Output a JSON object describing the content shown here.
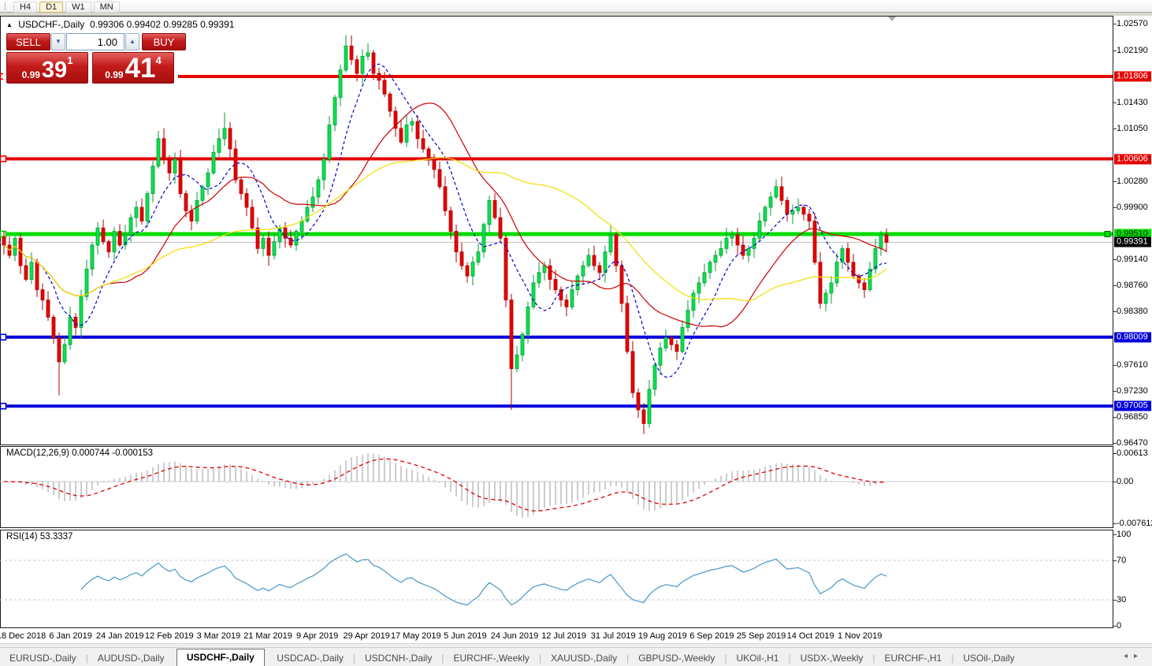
{
  "toolbar": {
    "timeframes": [
      "H4",
      "D1",
      "W1",
      "MN"
    ],
    "active": "D1"
  },
  "chart_header": {
    "collapse_icon": "▲",
    "symbol": "USDCHF-,Daily",
    "ohlc": "0.99306 0.99402 0.99285 0.99391"
  },
  "trade_panel": {
    "sell_label": "SELL",
    "buy_label": "BUY",
    "volume": "1.00",
    "spin_down_icon": "▼",
    "spin_up_icon": "▲",
    "sell_price": {
      "small": "0.99",
      "big": "39",
      "sup": "1"
    },
    "buy_price": {
      "small": "0.99",
      "big": "41",
      "sup": "4"
    }
  },
  "colors": {
    "bull_fill": "#0ae24e",
    "bull_stroke": "#069b36",
    "bear_fill": "#e60000",
    "bear_stroke": "#b00000",
    "ma_fast": "#0000cc",
    "ma_mid": "#cc0000",
    "ma_slow": "#f0df00",
    "hist": "#bcbcbc",
    "signal": "#dd0000",
    "rsi_line": "#4a96c8",
    "line_red": "#e60000",
    "line_green": "#00dd00",
    "line_blue": "#0000dd",
    "current_line": "#bfbfbf",
    "marker_gray": "#ababab"
  },
  "chart_data": {
    "type": "candlestick",
    "symbol": "USDCHF-",
    "timeframe": "Daily",
    "quote_ohlc": {
      "open": "0.99306",
      "high": "0.99402",
      "low": "0.99285",
      "close": "0.99391"
    },
    "y_axis": {
      "min": 0.9647,
      "max": 1.0257,
      "ticks": [
        "1.02570",
        "1.02190",
        "1.01430",
        "1.01050",
        "1.00280",
        "0.99900",
        "0.99140",
        "0.98760",
        "0.98380",
        "0.97610",
        "0.97230",
        "0.96850",
        "0.96470"
      ]
    },
    "badges": [
      {
        "text": "1.01806",
        "value": 1.01806,
        "bg": "#e60000",
        "fg": "#ffffff"
      },
      {
        "text": "1.00606",
        "value": 1.00606,
        "bg": "#e60000",
        "fg": "#ffffff"
      },
      {
        "text": "0.99510",
        "value": 0.9951,
        "bg": "#00dd00",
        "fg": "#002200"
      },
      {
        "text": "0.99391",
        "value": 0.99391,
        "bg": "#000000",
        "fg": "#ffffff"
      },
      {
        "text": "0.98009",
        "value": 0.98009,
        "bg": "#0000dd",
        "fg": "#ffffff"
      },
      {
        "text": "0.97005",
        "value": 0.97005,
        "bg": "#0000dd",
        "fg": "#ffffff"
      }
    ],
    "horizontal_lines": [
      {
        "value": 1.01806,
        "color": "#e60000",
        "width": 4
      },
      {
        "value": 1.00606,
        "color": "#e60000",
        "width": 4
      },
      {
        "value": 0.9951,
        "color": "#00dd00",
        "width": 5,
        "right_anchor": true
      },
      {
        "value": 0.98009,
        "color": "#0000dd",
        "width": 4
      },
      {
        "value": 0.97005,
        "color": "#0000dd",
        "width": 4
      }
    ],
    "current_price": {
      "value": 0.99391,
      "text": "0.99391"
    },
    "x_axis": {
      "labels": [
        "18 Dec 2018",
        "6 Jan 2019",
        "24 Jan 2019",
        "12 Feb 2019",
        "3 Mar 2019",
        "21 Mar 2019",
        "9 Apr 2019",
        "29 Apr 2019",
        "17 May 2019",
        "5 Jun 2019",
        "24 Jun 2019",
        "12 Jul 2019",
        "31 Jul 2019",
        "19 Aug 2019",
        "6 Sep 2019",
        "25 Sep 2019",
        "14 Oct 2019",
        "1 Nov 2019"
      ]
    },
    "series": {
      "x_start": 5,
      "x_step": 7,
      "closes": [
        0.9935,
        0.992,
        0.9945,
        0.9905,
        0.9885,
        0.991,
        0.987,
        0.9855,
        0.983,
        0.98,
        0.9765,
        0.979,
        0.983,
        0.9815,
        0.986,
        0.99,
        0.9935,
        0.996,
        0.994,
        0.9925,
        0.9955,
        0.9935,
        0.995,
        0.9975,
        0.999,
        0.997,
        1.001,
        1.005,
        1.009,
        1.006,
        1.004,
        1.006,
        1.001,
        0.9985,
        0.997,
        1.0,
        1.002,
        1.004,
        1.007,
        1.009,
        1.0105,
        1.0075,
        1.003,
        1.001,
        0.999,
        0.996,
        0.993,
        0.9945,
        0.992,
        0.994,
        0.996,
        0.9945,
        0.9935,
        0.9955,
        0.997,
        0.999,
        1.0005,
        1.003,
        1.006,
        1.011,
        1.015,
        1.019,
        1.0225,
        1.0205,
        1.0185,
        1.021,
        1.0215,
        1.0185,
        1.0175,
        1.0155,
        1.013,
        1.0105,
        1.0085,
        1.011,
        1.0115,
        1.009,
        1.0075,
        1.006,
        1.0045,
        1.002,
        0.9985,
        0.9955,
        0.9925,
        0.9905,
        0.989,
        0.991,
        0.9925,
        0.9965,
        1.0,
        0.9975,
        0.9945,
        0.9855,
        0.9755,
        0.9775,
        0.9805,
        0.9845,
        0.988,
        0.9895,
        0.9905,
        0.9885,
        0.987,
        0.9855,
        0.9845,
        0.987,
        0.989,
        0.9905,
        0.992,
        0.9905,
        0.9895,
        0.9925,
        0.995,
        0.9905,
        0.985,
        0.978,
        0.972,
        0.9695,
        0.9675,
        0.9725,
        0.976,
        0.9785,
        0.98,
        0.979,
        0.978,
        0.9815,
        0.984,
        0.9865,
        0.988,
        0.9895,
        0.991,
        0.992,
        0.993,
        0.9945,
        0.995,
        0.9935,
        0.992,
        0.993,
        0.9945,
        0.997,
        0.999,
        1.0005,
        1.002,
        1.0,
        0.998,
        0.9985,
        0.999,
        0.998,
        0.997,
        0.991,
        0.985,
        0.9865,
        0.988,
        0.991,
        0.993,
        0.991,
        0.989,
        0.988,
        0.987,
        0.99,
        0.993,
        0.995,
        0.9939
      ],
      "spikes": {
        "10": {
          "l": 0.9716
        },
        "28": {
          "h": 1.0101
        },
        "40": {
          "h": 1.0128
        },
        "62": {
          "h": 1.0241
        },
        "92": {
          "l": 0.9695
        },
        "116": {
          "l": 0.9663
        }
      }
    },
    "moving_averages": [
      {
        "name": "fast",
        "period": 8,
        "color": "#0000cc",
        "dash": "4,3"
      },
      {
        "name": "medium",
        "period": 20,
        "color": "#cc0000",
        "dash": ""
      },
      {
        "name": "slow",
        "period": 45,
        "color": "#f0df00",
        "dash": ""
      }
    ]
  },
  "indicators": {
    "macd": {
      "label": "MACD(12,26,9)",
      "values": "0.000744 -0.000153",
      "axis": [
        {
          "text": "0.00613",
          "value": 0.00613
        },
        {
          "text": "0.00",
          "value": 0
        },
        {
          "text": "-0.007612",
          "value": -0.007612
        }
      ]
    },
    "rsi": {
      "label": "RSI(14)",
      "value": "53.3337",
      "axis": [
        {
          "text": "100",
          "value": 100
        },
        {
          "text": "70",
          "value": 70
        },
        {
          "text": "30",
          "value": 30
        },
        {
          "text": "0",
          "value": 0
        }
      ],
      "dashed_levels": [
        70,
        30
      ]
    }
  },
  "tabs": {
    "items": [
      "EURUSD-,Daily",
      "AUDUSD-,Daily",
      "USDCHF-,Daily",
      "USDCAD-,Daily",
      "USDCNH-,Daily",
      "EURCHF-,Weekly",
      "XAUUSD-,Daily",
      "GBPUSD-,Weekly",
      "UKOil-,H1",
      "USDX-,Weekly",
      "EURCHF-,H1",
      "USOil-,Daily"
    ],
    "active_index": 2,
    "nav_left_icon": "◂",
    "nav_right_icon": "▸"
  }
}
